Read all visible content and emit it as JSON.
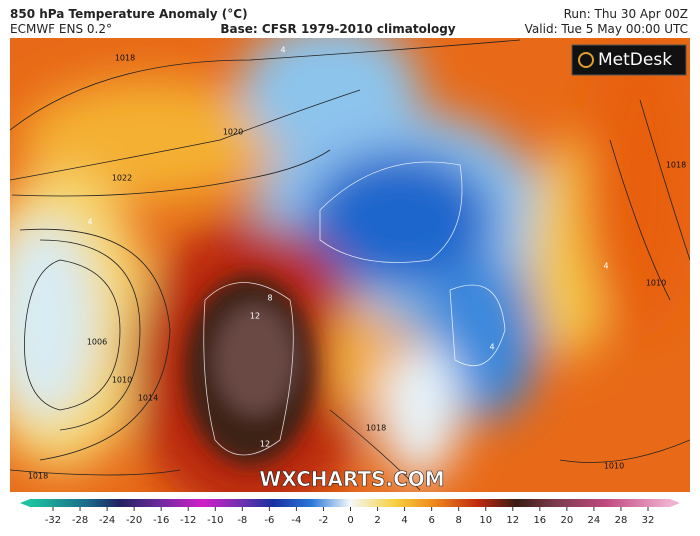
{
  "header": {
    "title": "850 hPa Temperature Anomaly (°C)",
    "model": "ECMWF ENS 0.2°",
    "base": "Base: CFSR 1979-2010 climatology",
    "run": "Run: Thu 30 Apr 00Z",
    "valid": "Valid: Tue 5 May 00:00 UTC"
  },
  "logo": "MetDesk",
  "watermark": "WXCHARTS.COM",
  "map": {
    "isobar_labels": [
      1018,
      1020,
      1022,
      1006,
      1010,
      1014,
      1018,
      1018,
      1010,
      1018,
      1010
    ],
    "anomaly_labels": [
      8,
      12,
      12,
      4,
      4,
      4,
      4
    ]
  },
  "colorbar": {
    "ticks": [
      -32,
      -28,
      -24,
      -20,
      -16,
      -12,
      -10,
      -8,
      -6,
      -4,
      -2,
      0,
      2,
      4,
      6,
      8,
      10,
      12,
      16,
      20,
      24,
      28,
      32
    ]
  }
}
